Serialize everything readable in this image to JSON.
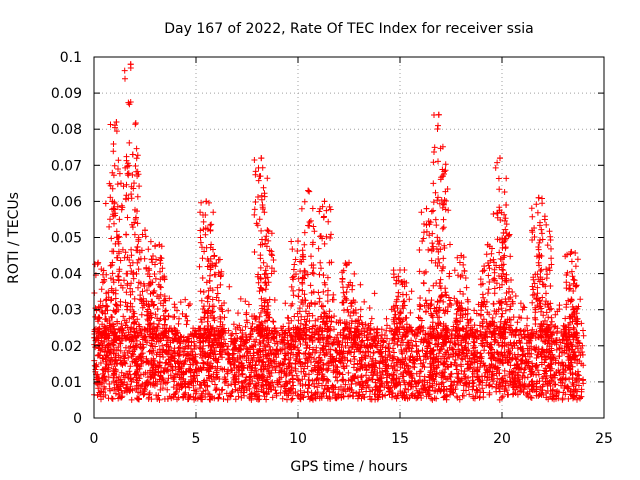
{
  "chart_data": {
    "type": "scatter",
    "title": "Day 167 of 2022, Rate Of TEC Index for receiver ssia",
    "xlabel": "GPS time / hours",
    "ylabel": "ROTI / TECUs",
    "xlim": [
      0,
      25
    ],
    "ylim": [
      0,
      0.1
    ],
    "xticks": [
      0,
      5,
      10,
      15,
      20,
      25
    ],
    "xtick_labels": [
      "0",
      "5",
      "10",
      "15",
      "20",
      "25"
    ],
    "yticks": [
      0,
      0.01,
      0.02,
      0.03,
      0.04,
      0.05,
      0.06,
      0.07,
      0.08,
      0.09,
      0.1
    ],
    "ytick_labels": [
      "0",
      "0.01",
      "0.02",
      "0.03",
      "0.04",
      "0.05",
      "0.06",
      "0.07",
      "0.08",
      "0.09",
      "0.1"
    ],
    "grid": true,
    "marker": "plus",
    "color": "#ff0000",
    "x_range": [
      0,
      24
    ],
    "baseline_band": [
      0.005,
      0.025
    ],
    "peaks": [
      {
        "x": 0.2,
        "y": 0.043
      },
      {
        "x": 0.9,
        "y": 0.06
      },
      {
        "x": 1.1,
        "y": 0.082
      },
      {
        "x": 1.8,
        "y": 0.098
      },
      {
        "x": 1.9,
        "y": 0.073
      },
      {
        "x": 2.5,
        "y": 0.052
      },
      {
        "x": 3.2,
        "y": 0.048
      },
      {
        "x": 5.5,
        "y": 0.06
      },
      {
        "x": 5.9,
        "y": 0.045
      },
      {
        "x": 8.2,
        "y": 0.072
      },
      {
        "x": 8.5,
        "y": 0.052
      },
      {
        "x": 10.0,
        "y": 0.049
      },
      {
        "x": 10.5,
        "y": 0.063
      },
      {
        "x": 11.3,
        "y": 0.06
      },
      {
        "x": 12.5,
        "y": 0.043
      },
      {
        "x": 15.0,
        "y": 0.041
      },
      {
        "x": 16.3,
        "y": 0.058
      },
      {
        "x": 16.9,
        "y": 0.084
      },
      {
        "x": 17.1,
        "y": 0.067
      },
      {
        "x": 18.0,
        "y": 0.045
      },
      {
        "x": 19.3,
        "y": 0.048
      },
      {
        "x": 19.9,
        "y": 0.072
      },
      {
        "x": 20.2,
        "y": 0.059
      },
      {
        "x": 21.8,
        "y": 0.061
      },
      {
        "x": 22.1,
        "y": 0.055
      },
      {
        "x": 23.4,
        "y": 0.046
      }
    ]
  }
}
